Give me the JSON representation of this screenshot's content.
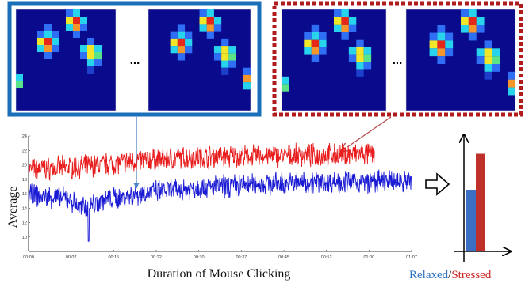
{
  "chart_data": {
    "type": "line",
    "xlabel": "Duration of Mouse Clicking",
    "ylabel": "Average",
    "x_tick_labels": [
      "00:00",
      "00:07",
      "00:15",
      "00:22",
      "00:30",
      "00:37",
      "00:45",
      "00:52",
      "01:00",
      "01:07"
    ],
    "x_range_seconds": [
      0,
      67
    ],
    "ylim": [
      8,
      24
    ],
    "y_ticks": [
      10,
      12,
      14,
      16,
      18,
      20,
      22,
      24
    ],
    "grid": false,
    "series": [
      {
        "color": "#e81c1c",
        "end_seconds": 60.5,
        "trend": [
          [
            0,
            19.3
          ],
          [
            10,
            19.8
          ],
          [
            20,
            20.6
          ],
          [
            30,
            21.1
          ],
          [
            40,
            21.2
          ],
          [
            50,
            21.3
          ],
          [
            60.5,
            21.5
          ]
        ],
        "dip": null
      },
      {
        "color": "#1a1ad4",
        "end_seconds": 67,
        "trend": [
          [
            0,
            15.8
          ],
          [
            7,
            15.3
          ],
          [
            9,
            14.0
          ],
          [
            13,
            15.0
          ],
          [
            20,
            16.1
          ],
          [
            30,
            16.8
          ],
          [
            40,
            17.3
          ],
          [
            50,
            17.6
          ],
          [
            60,
            17.6
          ],
          [
            67,
            17.8
          ]
        ],
        "dip": {
          "x_seconds": 10.5,
          "y": 9.4
        }
      }
    ]
  },
  "legend": {
    "relaxed": "Relaxed",
    "separator": "/",
    "stressed": "Stressed"
  },
  "bars": [
    {
      "name": "Relaxed",
      "color": "#3a6fc4",
      "relative_value": 0.6
    },
    {
      "name": "Stressed",
      "color": "#c0302b",
      "relative_value": 0.95
    }
  ],
  "panels": {
    "relaxed": {
      "border_color": "#1a6fb8",
      "ellipsis": "..."
    },
    "stressed": {
      "border_color": "#b01c1c",
      "ellipsis": "..."
    }
  },
  "colors": {
    "heatmap_background": "#0a0a8c",
    "arrow_blue": "#4a86c8",
    "arrow_red": "#b84a4a"
  }
}
